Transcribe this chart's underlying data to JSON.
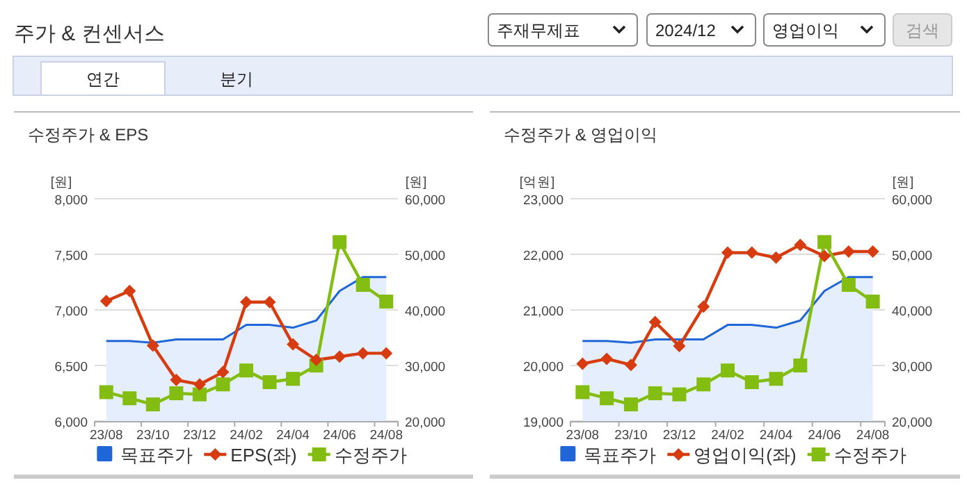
{
  "chart_data": [
    {
      "type": "line",
      "title": "수정주가 & EPS",
      "ylabel": "[원]",
      "y2label": "[원]",
      "annotations": [
        "주가 & 컨센서스",
        "주재무제표",
        "2024/12",
        "영업이익",
        "검색",
        "연간",
        "분기"
      ],
      "categories": [
        "23/08",
        null,
        "23/10",
        null,
        "23/12",
        null,
        "24/02",
        null,
        "24/04",
        null,
        "24/06",
        null,
        "24/08"
      ],
      "ylim": [
        6000,
        8000
      ],
      "yticks": [
        {
          "value": 6000,
          "label": "6,000"
        },
        {
          "value": 6500,
          "label": "6,500"
        },
        {
          "value": 7000,
          "label": "7,000"
        },
        {
          "value": 7500,
          "label": "7,500"
        },
        {
          "value": 8000,
          "label": "8,000"
        }
      ],
      "y2lim": [
        20000,
        60000
      ],
      "y2ticks": [
        {
          "value": 20000,
          "label": "20,000"
        },
        {
          "value": 30000,
          "label": "30,000"
        },
        {
          "value": 40000,
          "label": "40,000"
        },
        {
          "value": 50000,
          "label": "50,000"
        },
        {
          "value": 60000,
          "label": "60,000"
        }
      ],
      "grid": "y",
      "legend": "bottom",
      "series": [
        {
          "name": "목표주가",
          "type": "area",
          "axis": "y2",
          "color": "#1f66d8",
          "marker": "none",
          "values": [
            34400,
            34400,
            34100,
            34700,
            34700,
            34700,
            37300,
            37300,
            36800,
            38100,
            43400,
            45900,
            45900
          ]
        },
        {
          "name": "EPS(좌)",
          "color": "#d63c0f",
          "marker": "diamond",
          "values": [
            7080,
            7170,
            6680,
            6370,
            6330,
            6440,
            7070,
            7070,
            6690,
            6550,
            6580,
            6610,
            6610
          ]
        },
        {
          "name": "수정주가",
          "axis": "y2",
          "color": "#84bd12",
          "marker": "square",
          "values": [
            25200,
            24100,
            23000,
            25000,
            24800,
            26600,
            29100,
            27000,
            27600,
            30000,
            52200,
            44500,
            41500
          ]
        }
      ]
    },
    {
      "type": "line",
      "title": "수정주가 & 영업이익",
      "ylabel": "[억원]",
      "y2label": "[원]",
      "categories": [
        "23/08",
        null,
        "23/10",
        null,
        "23/12",
        null,
        "24/02",
        null,
        "24/04",
        null,
        "24/06",
        null,
        "24/08"
      ],
      "ylim": [
        19000,
        23000
      ],
      "yticks": [
        {
          "value": 19000,
          "label": "19,000"
        },
        {
          "value": 20000,
          "label": "20,000"
        },
        {
          "value": 21000,
          "label": "21,000"
        },
        {
          "value": 22000,
          "label": "22,000"
        },
        {
          "value": 23000,
          "label": "23,000"
        }
      ],
      "y2lim": [
        20000,
        60000
      ],
      "y2ticks": [
        {
          "value": 20000,
          "label": "20,000"
        },
        {
          "value": 30000,
          "label": "30,000"
        },
        {
          "value": 40000,
          "label": "40,000"
        },
        {
          "value": 50000,
          "label": "50,000"
        },
        {
          "value": 60000,
          "label": "60,000"
        }
      ],
      "grid": "y",
      "legend": "bottom",
      "series": [
        {
          "name": "목표주가",
          "type": "area",
          "axis": "y2",
          "color": "#1f66d8",
          "marker": "none",
          "values": [
            34400,
            34400,
            34100,
            34700,
            34700,
            34700,
            37300,
            37300,
            36800,
            38100,
            43400,
            45900,
            45900
          ]
        },
        {
          "name": "영업이익(좌)",
          "color": "#d63c0f",
          "marker": "diamond",
          "values": [
            20030,
            20120,
            20010,
            20780,
            20350,
            21060,
            22030,
            22030,
            21940,
            22170,
            21970,
            22050,
            22050
          ]
        },
        {
          "name": "수정주가",
          "axis": "y2",
          "color": "#84bd12",
          "marker": "square",
          "values": [
            25200,
            24100,
            23000,
            25000,
            24800,
            26600,
            29100,
            27000,
            27600,
            30000,
            52200,
            44500,
            41500
          ]
        }
      ]
    }
  ]
}
